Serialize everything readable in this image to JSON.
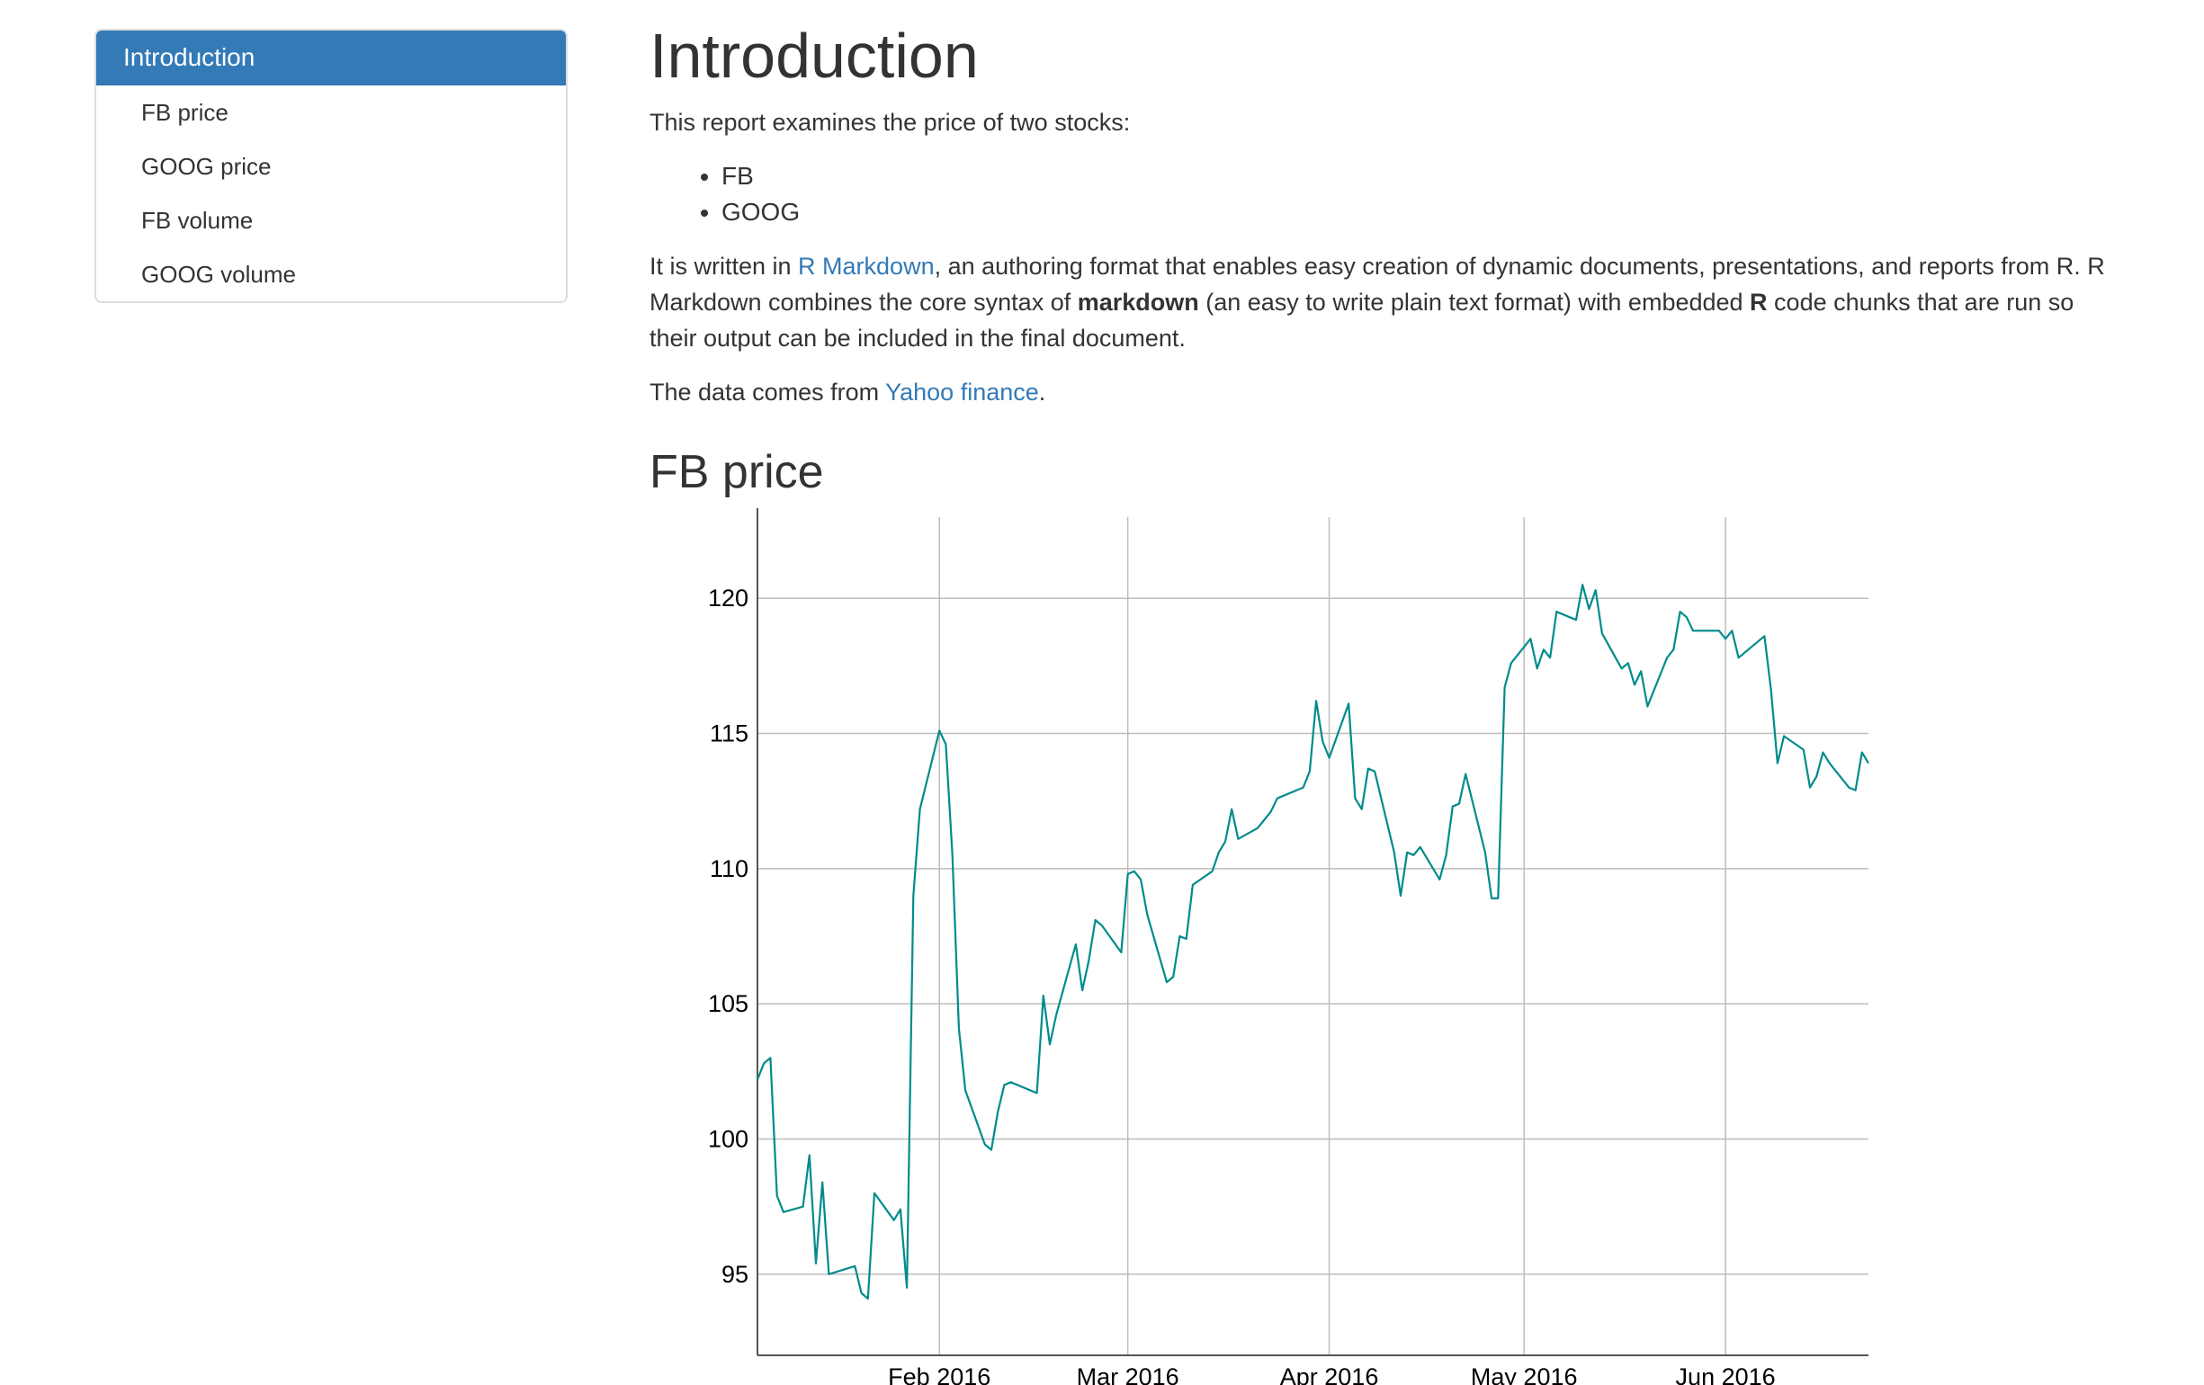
{
  "toc": {
    "items": [
      {
        "label": "Introduction",
        "active": true
      },
      {
        "label": "FB price"
      },
      {
        "label": "GOOG price"
      },
      {
        "label": "FB volume"
      },
      {
        "label": "GOOG volume"
      }
    ]
  },
  "main": {
    "title": "Introduction",
    "intro_p1": "This report examines the price of two stocks:",
    "stocks": [
      "FB",
      "GOOG"
    ],
    "p2_part1": "It is written in ",
    "p2_link": "R Markdown",
    "p2_part2": ", an authoring format that enables easy creation of dynamic documents, presentations, and reports from R. R Markdown combines the core syntax of ",
    "p2_bold1": "markdown",
    "p2_part3": " (an easy to write plain text format) with embedded ",
    "p2_bold2": "R",
    "p2_part4": " code chunks that are run so their output can be included in the final document.",
    "p3_part1": "The data comes from ",
    "p3_link": "Yahoo finance",
    "p3_part2": ".",
    "section_title": "FB price"
  },
  "colors": {
    "line": "#008b8b",
    "toc_active": "#337ab7",
    "link": "#337ab7"
  },
  "chart_data": {
    "type": "line",
    "title": "",
    "xlabel": "",
    "ylabel": "",
    "x_ticks": [
      "Feb 2016",
      "Mar 2016",
      "Apr 2016",
      "May 2016",
      "Jun 2016"
    ],
    "y_ticks": [
      95,
      100,
      105,
      110,
      115,
      120
    ],
    "ylim": [
      92,
      123
    ],
    "xlim": [
      "2016-01-04",
      "2016-06-23"
    ],
    "grid": true,
    "series": [
      {
        "x": [
          "2016-01-04",
          "2016-01-05",
          "2016-01-06",
          "2016-01-07",
          "2016-01-08",
          "2016-01-11",
          "2016-01-12",
          "2016-01-13",
          "2016-01-14",
          "2016-01-15",
          "2016-01-19",
          "2016-01-20",
          "2016-01-21",
          "2016-01-22",
          "2016-01-25",
          "2016-01-26",
          "2016-01-27",
          "2016-01-28",
          "2016-01-29",
          "2016-02-01",
          "2016-02-02",
          "2016-02-03",
          "2016-02-04",
          "2016-02-05",
          "2016-02-08",
          "2016-02-09",
          "2016-02-10",
          "2016-02-11",
          "2016-02-12",
          "2016-02-16",
          "2016-02-17",
          "2016-02-18",
          "2016-02-19",
          "2016-02-22",
          "2016-02-23",
          "2016-02-24",
          "2016-02-25",
          "2016-02-26",
          "2016-02-29",
          "2016-03-01",
          "2016-03-02",
          "2016-03-03",
          "2016-03-04",
          "2016-03-07",
          "2016-03-08",
          "2016-03-09",
          "2016-03-10",
          "2016-03-11",
          "2016-03-14",
          "2016-03-15",
          "2016-03-16",
          "2016-03-17",
          "2016-03-18",
          "2016-03-21",
          "2016-03-22",
          "2016-03-23",
          "2016-03-24",
          "2016-03-28",
          "2016-03-29",
          "2016-03-30",
          "2016-03-31",
          "2016-04-01",
          "2016-04-04",
          "2016-04-05",
          "2016-04-06",
          "2016-04-07",
          "2016-04-08",
          "2016-04-11",
          "2016-04-12",
          "2016-04-13",
          "2016-04-14",
          "2016-04-15",
          "2016-04-18",
          "2016-04-19",
          "2016-04-20",
          "2016-04-21",
          "2016-04-22",
          "2016-04-25",
          "2016-04-26",
          "2016-04-27",
          "2016-04-28",
          "2016-04-29",
          "2016-05-02",
          "2016-05-03",
          "2016-05-04",
          "2016-05-05",
          "2016-05-06",
          "2016-05-09",
          "2016-05-10",
          "2016-05-11",
          "2016-05-12",
          "2016-05-13",
          "2016-05-16",
          "2016-05-17",
          "2016-05-18",
          "2016-05-19",
          "2016-05-20",
          "2016-05-23",
          "2016-05-24",
          "2016-05-25",
          "2016-05-26",
          "2016-05-27",
          "2016-05-31",
          "2016-06-01",
          "2016-06-02",
          "2016-06-03",
          "2016-06-06",
          "2016-06-07",
          "2016-06-08",
          "2016-06-09",
          "2016-06-10",
          "2016-06-13",
          "2016-06-14",
          "2016-06-15",
          "2016-06-16",
          "2016-06-17",
          "2016-06-20",
          "2016-06-21",
          "2016-06-22",
          "2016-06-23"
        ],
        "values": [
          102.2,
          102.8,
          103.0,
          97.9,
          97.3,
          97.5,
          99.4,
          95.4,
          98.4,
          95.0,
          95.3,
          94.3,
          94.1,
          98.0,
          97.0,
          97.4,
          94.5,
          109.0,
          112.2,
          115.1,
          114.6,
          110.5,
          104.1,
          101.8,
          99.8,
          99.6,
          101.0,
          102.0,
          102.1,
          101.7,
          105.3,
          103.5,
          104.6,
          107.2,
          105.5,
          106.6,
          108.1,
          107.9,
          106.9,
          109.8,
          109.9,
          109.6,
          108.3,
          105.8,
          106.0,
          107.5,
          107.4,
          109.4,
          109.9,
          110.6,
          111.0,
          112.2,
          111.1,
          111.5,
          111.8,
          112.1,
          112.6,
          113.0,
          113.6,
          116.2,
          114.7,
          114.1,
          116.1,
          112.6,
          112.2,
          113.7,
          113.6,
          110.6,
          109.0,
          110.6,
          110.5,
          110.8,
          109.6,
          110.5,
          112.3,
          112.4,
          113.5,
          110.6,
          108.9,
          108.9,
          116.7,
          117.6,
          118.5,
          117.4,
          118.1,
          117.8,
          119.5,
          119.2,
          120.5,
          119.6,
          120.3,
          118.7,
          117.4,
          117.6,
          116.8,
          117.3,
          116.0,
          117.8,
          118.1,
          119.5,
          119.3,
          118.8,
          118.8,
          118.5,
          118.8,
          117.8,
          118.4,
          118.6,
          116.6,
          113.9,
          114.9,
          114.4,
          113.0,
          113.4,
          114.3,
          113.9,
          113.0,
          112.9,
          114.3,
          113.9
        ]
      }
    ]
  }
}
